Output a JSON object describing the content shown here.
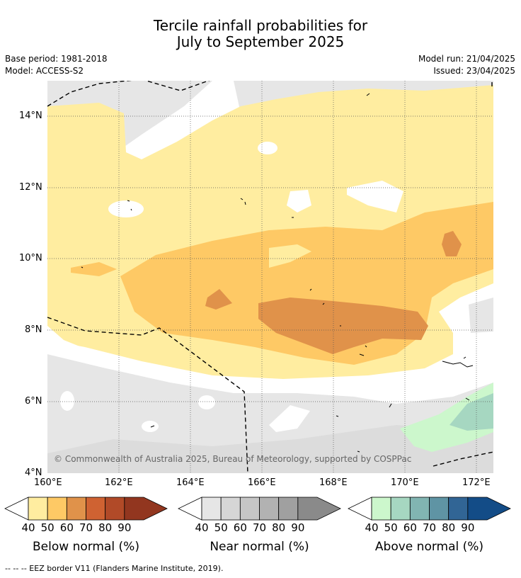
{
  "header": {
    "title_line1": "Tercile rainfall probabilities for",
    "title_line2": "July to September 2025",
    "base_period": "Base period: 1981-2018",
    "model": "Model: ACCESS-S2",
    "model_run": "Model run: 21/04/2025",
    "issued": "Issued: 23/04/2025"
  },
  "map": {
    "lat_labels": [
      "14°N",
      "12°N",
      "10°N",
      "8°N",
      "6°N",
      "4°N"
    ],
    "lon_labels": [
      "160°E",
      "162°E",
      "164°E",
      "166°E",
      "168°E",
      "170°E",
      "172°E"
    ],
    "copyright": "© Commonwealth of Australia 2025, Bureau of Meteorology, supported by COSPPac"
  },
  "colorbars": [
    {
      "name": "Below normal (%)",
      "ticks": [
        "40",
        "50",
        "60",
        "70",
        "80",
        "90"
      ],
      "colors": [
        "#ffeda0",
        "#fec965",
        "#e0924a",
        "#cf6232",
        "#b14a28",
        "#92361f"
      ]
    },
    {
      "name": "Near normal (%)",
      "ticks": [
        "40",
        "50",
        "60",
        "70",
        "80",
        "90"
      ],
      "colors": [
        "#e6e6e6",
        "#d6d6d6",
        "#c6c6c6",
        "#b2b2b2",
        "#a0a0a0",
        "#8a8a8a"
      ]
    },
    {
      "name": "Above normal (%)",
      "ticks": [
        "40",
        "50",
        "60",
        "70",
        "80",
        "90"
      ],
      "colors": [
        "#ccf7cc",
        "#a6d7c1",
        "#81b5b2",
        "#5f94a4",
        "#316595",
        "#134c87"
      ]
    }
  ],
  "footer": "--  --  -- EEZ border V11 (Flanders Marine Institute, 2019)."
}
